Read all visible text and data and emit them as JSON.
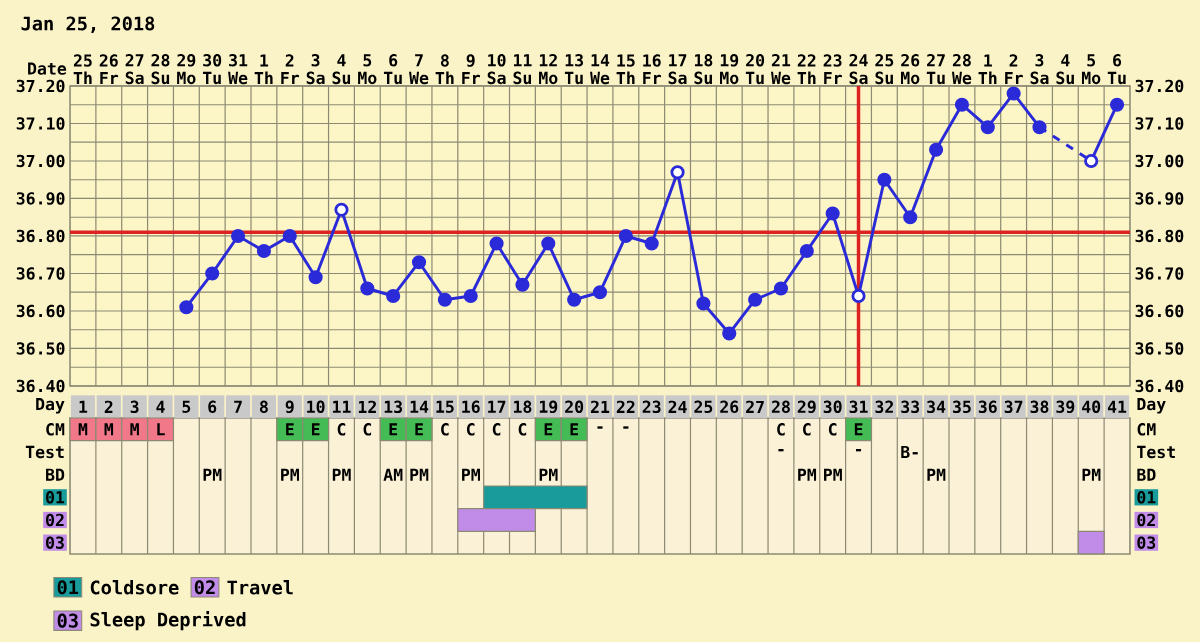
{
  "chart_data": [
    {
      "type": "line",
      "title": "Jan 25, 2018",
      "xlabel": "Date",
      "categories": [
        "25 Th",
        "26 Fr",
        "27 Sa",
        "28 Su",
        "29 Mo",
        "30 Tu",
        "31 We",
        "1 Th",
        "2 Fr",
        "3 Sa",
        "4 Su",
        "5 Mo",
        "6 Tu",
        "7 We",
        "8 Th",
        "9 Fr",
        "10 Sa",
        "11 Su",
        "12 Mo",
        "13 Tu",
        "14 We",
        "15 Th",
        "16 Fr",
        "17 Sa",
        "18 Su",
        "19 Mo",
        "20 Tu",
        "21 We",
        "22 Th",
        "23 Fr",
        "24 Sa",
        "25 Su",
        "26 Mo",
        "27 Tu",
        "28 We",
        "1 Th",
        "2 Fr",
        "3 Sa",
        "4 Su",
        "5 Mo",
        "6 Tu"
      ],
      "ylim": [
        36.4,
        37.2
      ],
      "yticks": [
        {
          "value": 36.4,
          "label": "36.40"
        },
        {
          "value": 36.45,
          "label": null
        },
        {
          "value": 36.5,
          "label": "36.50"
        },
        {
          "value": 36.55,
          "label": null
        },
        {
          "value": 36.6,
          "label": "36.60"
        },
        {
          "value": 36.65,
          "label": null
        },
        {
          "value": 36.7,
          "label": "36.70"
        },
        {
          "value": 36.75,
          "label": null
        },
        {
          "value": 36.8,
          "label": "36.80"
        },
        {
          "value": 36.85,
          "label": null
        },
        {
          "value": 36.9,
          "label": "36.90"
        },
        {
          "value": 36.95,
          "label": null
        },
        {
          "value": 37.0,
          "label": "37.00"
        },
        {
          "value": 37.05,
          "label": null
        },
        {
          "value": 37.1,
          "label": "37.10"
        },
        {
          "value": 37.15,
          "label": null
        },
        {
          "value": 37.2,
          "label": "37.20"
        }
      ],
      "y2lim": [
        36.4,
        37.2
      ],
      "y2ticks": [
        {
          "value": 36.4,
          "label": "36.40"
        },
        {
          "value": 36.45,
          "label": null
        },
        {
          "value": 36.5,
          "label": "36.50"
        },
        {
          "value": 36.55,
          "label": null
        },
        {
          "value": 36.6,
          "label": "36.60"
        },
        {
          "value": 36.65,
          "label": null
        },
        {
          "value": 36.7,
          "label": "36.70"
        },
        {
          "value": 36.75,
          "label": null
        },
        {
          "value": 36.8,
          "label": "36.80"
        },
        {
          "value": 36.85,
          "label": null
        },
        {
          "value": 36.9,
          "label": "36.90"
        },
        {
          "value": 36.95,
          "label": null
        },
        {
          "value": 37.0,
          "label": "37.00"
        },
        {
          "value": 37.05,
          "label": null
        },
        {
          "value": 37.1,
          "label": "37.10"
        },
        {
          "value": 37.15,
          "label": null
        },
        {
          "value": 37.2,
          "label": "37.20"
        }
      ],
      "grid": true,
      "marker": "circle",
      "series": [
        {
          "color": "#2a2ad8",
          "values": [
            null,
            null,
            null,
            null,
            36.61,
            36.7,
            36.8,
            36.76,
            36.8,
            36.69,
            36.87,
            36.66,
            36.64,
            36.73,
            36.63,
            36.64,
            36.78,
            36.67,
            36.78,
            36.63,
            36.65,
            36.8,
            36.78,
            36.97,
            36.62,
            36.54,
            36.63,
            36.66,
            36.76,
            36.86,
            36.64,
            36.95,
            36.85,
            37.03,
            37.15,
            37.09,
            37.18,
            37.09,
            null,
            37.0,
            37.15
          ]
        },
        {
          "type": "scatter",
          "color": "#ffffff",
          "values": [
            null,
            null,
            null,
            null,
            null,
            null,
            null,
            null,
            null,
            null,
            36.87,
            null,
            null,
            null,
            null,
            null,
            null,
            null,
            null,
            null,
            null,
            null,
            null,
            36.97,
            null,
            null,
            null,
            null,
            null,
            null,
            36.64,
            null,
            null,
            null,
            null,
            null,
            null,
            null,
            null,
            37.0,
            null
          ]
        }
      ],
      "ref_lines": [
        {
          "axis": "y",
          "value": 36.81,
          "color": "#dd2222"
        },
        {
          "axis": "x",
          "value": "24 Sa",
          "color": "#dd2222"
        }
      ]
    },
    {
      "type": "heatmap",
      "xlabel": "Day",
      "categories": [
        "1",
        "2",
        "3",
        "4",
        "5",
        "6",
        "7",
        "8",
        "9",
        "10",
        "11",
        "12",
        "13",
        "14",
        "15",
        "16",
        "17",
        "18",
        "19",
        "20",
        "21",
        "22",
        "23",
        "24",
        "25",
        "26",
        "27",
        "28",
        "29",
        "30",
        "31",
        "32",
        "33",
        "34",
        "35",
        "36",
        "37",
        "38",
        "39",
        "40",
        "41"
      ],
      "y_categories": [
        "CM",
        "Test",
        "BD",
        "01",
        "02",
        "03"
      ],
      "y2_categories": [
        "CM",
        "Test",
        "BD",
        "01",
        "02",
        "03"
      ],
      "cells": [
        [
          null,
          null,
          null,
          null,
          null,
          null,
          null,
          null,
          null,
          null,
          null,
          null,
          null,
          null,
          null,
          null,
          null,
          null,
          null,
          null,
          null,
          null,
          null,
          null,
          null,
          null,
          null,
          null,
          null,
          null,
          null,
          null,
          null,
          null,
          null,
          null,
          null,
          null,
          null,
          null,
          null
        ],
        [
          null,
          null,
          null,
          null,
          null,
          null,
          null,
          null,
          null,
          null,
          null,
          null,
          null,
          null,
          null,
          null,
          null,
          null,
          null,
          null,
          null,
          null,
          null,
          null,
          null,
          null,
          null,
          null,
          null,
          null,
          null,
          null,
          null,
          null,
          null,
          null,
          null,
          null,
          null,
          null,
          null
        ],
        [
          null,
          null,
          null,
          null,
          null,
          null,
          null,
          null,
          null,
          null,
          null,
          null,
          null,
          null,
          null,
          null,
          null,
          null,
          null,
          null,
          null,
          null,
          null,
          null,
          null,
          null,
          null,
          null,
          null,
          null,
          null,
          null,
          null,
          null,
          null,
          null,
          null,
          null,
          null,
          null,
          null
        ],
        [
          null,
          null,
          null,
          null,
          null,
          null,
          null,
          null,
          null,
          null,
          null,
          null,
          null,
          null,
          null,
          null,
          null,
          null,
          null,
          null,
          null,
          null,
          null,
          null,
          null,
          null,
          null,
          null,
          null,
          null,
          null,
          null,
          null,
          null,
          null,
          null,
          null,
          null,
          null,
          null,
          null
        ],
        [
          null,
          null,
          null,
          null,
          null,
          null,
          null,
          null,
          null,
          null,
          null,
          null,
          null,
          null,
          null,
          null,
          null,
          null,
          null,
          null,
          null,
          null,
          null,
          null,
          null,
          null,
          null,
          null,
          null,
          null,
          null,
          null,
          null,
          null,
          null,
          null,
          null,
          null,
          null,
          null,
          null
        ],
        [
          null,
          null,
          null,
          null,
          null,
          null,
          null,
          null,
          null,
          null,
          null,
          null,
          null,
          null,
          null,
          null,
          null,
          null,
          null,
          null,
          null,
          null,
          null,
          null,
          null,
          null,
          null,
          null,
          null,
          null,
          null,
          null,
          null,
          null,
          null,
          null,
          null,
          null,
          null,
          null,
          null
        ]
      ],
      "cell_labels": [
        [
          "M",
          "M",
          "M",
          "L",
          null,
          null,
          null,
          null,
          "E",
          "E",
          "C",
          "C",
          "E",
          "E",
          "C",
          "C",
          "C",
          "C",
          "E",
          "E",
          "-",
          "-",
          null,
          null,
          null,
          null,
          null,
          "C",
          "C",
          "C",
          "E",
          null,
          null,
          null,
          null,
          null,
          null,
          null,
          null,
          null,
          null
        ],
        [
          null,
          null,
          null,
          null,
          null,
          null,
          null,
          null,
          null,
          null,
          null,
          null,
          null,
          null,
          null,
          null,
          null,
          null,
          null,
          null,
          null,
          null,
          null,
          null,
          null,
          null,
          null,
          "-",
          null,
          null,
          "-",
          null,
          "B-",
          null,
          null,
          null,
          null,
          null,
          null,
          null,
          null
        ],
        [
          null,
          null,
          null,
          null,
          null,
          "PM",
          null,
          null,
          "PM",
          null,
          "PM",
          null,
          "AM",
          "PM",
          null,
          "PM",
          null,
          null,
          "PM",
          null,
          null,
          null,
          null,
          null,
          null,
          null,
          null,
          null,
          "PM",
          "PM",
          null,
          null,
          null,
          "PM",
          null,
          null,
          null,
          null,
          null,
          "PM",
          null
        ],
        [
          null,
          null,
          null,
          null,
          null,
          null,
          null,
          null,
          null,
          null,
          null,
          null,
          null,
          null,
          null,
          null,
          null,
          null,
          null,
          null,
          null,
          null,
          null,
          null,
          null,
          null,
          null,
          null,
          null,
          null,
          null,
          null,
          null,
          null,
          null,
          null,
          null,
          null,
          null,
          null,
          null
        ],
        [
          null,
          null,
          null,
          null,
          null,
          null,
          null,
          null,
          null,
          null,
          null,
          null,
          null,
          null,
          null,
          null,
          null,
          null,
          null,
          null,
          null,
          null,
          null,
          null,
          null,
          null,
          null,
          null,
          null,
          null,
          null,
          null,
          null,
          null,
          null,
          null,
          null,
          null,
          null,
          null,
          null
        ],
        [
          null,
          null,
          null,
          null,
          null,
          null,
          null,
          null,
          null,
          null,
          null,
          null,
          null,
          null,
          null,
          null,
          null,
          null,
          null,
          null,
          null,
          null,
          null,
          null,
          null,
          null,
          null,
          null,
          null,
          null,
          null,
          null,
          null,
          null,
          null,
          null,
          null,
          null,
          null,
          null,
          null
        ]
      ],
      "colors": [
        [
          "#f07888",
          "#f07888",
          "#f07888",
          "#f07888",
          null,
          null,
          null,
          null,
          "#44bb55",
          "#44bb55",
          null,
          null,
          "#44bb55",
          "#44bb55",
          null,
          null,
          null,
          null,
          "#44bb55",
          "#44bb55",
          null,
          null,
          null,
          null,
          null,
          null,
          null,
          null,
          null,
          null,
          "#44bb55",
          null,
          null,
          null,
          null,
          null,
          null,
          null,
          null,
          null,
          null
        ],
        [
          null,
          null,
          null,
          null,
          null,
          null,
          null,
          null,
          null,
          null,
          null,
          null,
          null,
          null,
          null,
          null,
          null,
          null,
          null,
          null,
          null,
          null,
          null,
          null,
          null,
          null,
          null,
          null,
          null,
          null,
          null,
          null,
          null,
          null,
          null,
          null,
          null,
          null,
          null,
          null,
          null
        ],
        [
          null,
          null,
          null,
          null,
          null,
          null,
          null,
          null,
          null,
          null,
          null,
          null,
          null,
          null,
          null,
          null,
          null,
          null,
          null,
          null,
          null,
          null,
          null,
          null,
          null,
          null,
          null,
          null,
          null,
          null,
          null,
          null,
          null,
          null,
          null,
          null,
          null,
          null,
          null,
          null,
          null
        ],
        [
          null,
          null,
          null,
          null,
          null,
          null,
          null,
          null,
          null,
          null,
          null,
          null,
          null,
          null,
          null,
          null,
          null,
          null,
          null,
          null,
          null,
          null,
          null,
          null,
          null,
          null,
          null,
          null,
          null,
          null,
          null,
          null,
          null,
          null,
          null,
          null,
          null,
          null,
          null,
          null,
          null
        ],
        [
          null,
          null,
          null,
          null,
          null,
          null,
          null,
          null,
          null,
          null,
          null,
          null,
          null,
          null,
          null,
          null,
          null,
          null,
          null,
          null,
          null,
          null,
          null,
          null,
          null,
          null,
          null,
          null,
          null,
          null,
          null,
          null,
          null,
          null,
          null,
          null,
          null,
          null,
          null,
          null,
          null
        ],
        [
          null,
          null,
          null,
          null,
          null,
          null,
          null,
          null,
          null,
          null,
          null,
          null,
          null,
          null,
          null,
          null,
          null,
          null,
          null,
          null,
          null,
          null,
          null,
          null,
          null,
          null,
          null,
          null,
          null,
          null,
          null,
          null,
          null,
          null,
          null,
          null,
          null,
          null,
          null,
          null,
          null
        ]
      ],
      "bands": [
        {
          "axis": "x",
          "from": "17",
          "to": "20",
          "label": "Coldsore",
          "color": "#1a9b9b"
        },
        {
          "axis": "x",
          "from": "16",
          "to": "18",
          "label": "Travel",
          "color": "#c08ce8"
        },
        {
          "axis": "x",
          "from": "40",
          "to": "40",
          "label": "Sleep Deprived",
          "color": "#c08ce8"
        }
      ],
      "legend": "bottom left"
    }
  ]
}
